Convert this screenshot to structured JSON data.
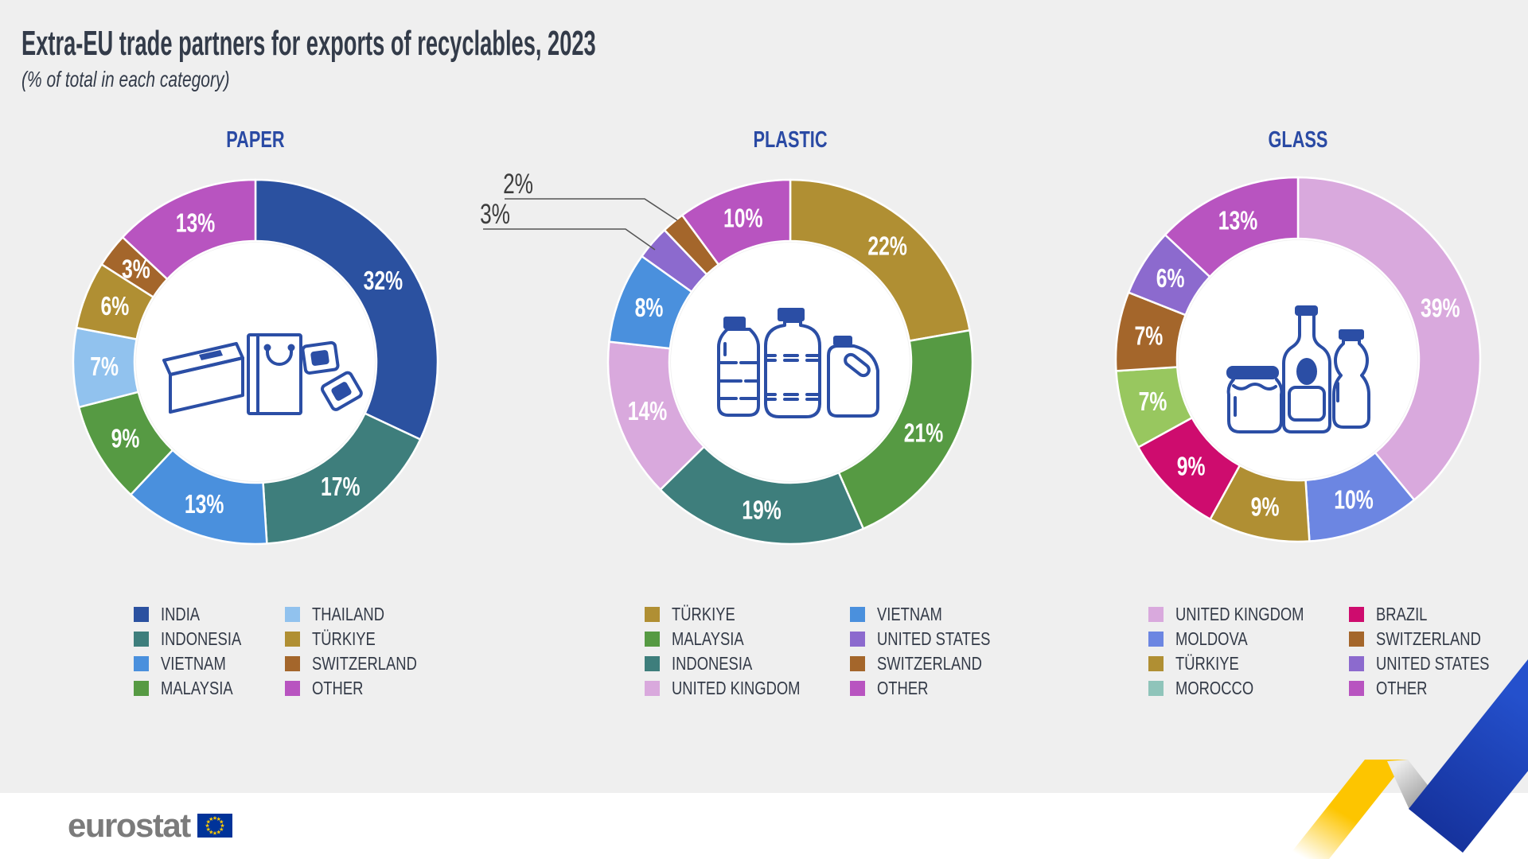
{
  "page": {
    "title": "Extra-EU trade partners for exports of recyclables, 2023",
    "subtitle": "(% of total in each category)"
  },
  "chart_data": [
    {
      "type": "donut",
      "title": "PAPER",
      "unit": "% of total",
      "center_icon": "paper-packaging-icon",
      "categories": [
        "INDIA",
        "INDONESIA",
        "VIETNAM",
        "MALAYSIA",
        "THAILAND",
        "TÜRKIYE",
        "SWITZERLAND",
        "OTHER"
      ],
      "values": [
        32,
        17,
        13,
        9,
        7,
        6,
        3,
        13
      ],
      "labels": [
        "32%",
        "17%",
        "13%",
        "9%",
        "7%",
        "6%",
        "3%",
        "13%"
      ],
      "colors": [
        "#2b51a0",
        "#3e7e7c",
        "#4a90dd",
        "#569a43",
        "#91c2ee",
        "#b08f33",
        "#a4662b",
        "#b854c0"
      ],
      "legend_col1": [
        "INDIA",
        "INDONESIA",
        "VIETNAM",
        "MALAYSIA"
      ],
      "legend_col2": [
        "THAILAND",
        "TÜRKIYE",
        "SWITZERLAND",
        "OTHER"
      ]
    },
    {
      "type": "donut",
      "title": "PLASTIC",
      "unit": "% of total",
      "center_icon": "plastic-bottles-icon",
      "categories": [
        "TÜRKIYE",
        "MALAYSIA",
        "INDONESIA",
        "UNITED KINGDOM",
        "VIETNAM",
        "UNITED STATES",
        "SWITZERLAND",
        "OTHER"
      ],
      "values": [
        22,
        21,
        19,
        14,
        8,
        3,
        2,
        10
      ],
      "labels": [
        "22%",
        "21%",
        "19%",
        "14%",
        "8%",
        "3%",
        "2%",
        "10%"
      ],
      "colors": [
        "#b08f33",
        "#569a43",
        "#3e7e7c",
        "#d9a9dd",
        "#4a90dd",
        "#8c6ace",
        "#a4662b",
        "#b854c0"
      ],
      "callouts": [
        {
          "category": "SWITZERLAND",
          "label": "2%"
        },
        {
          "category": "UNITED STATES",
          "label": "3%"
        }
      ],
      "legend_col1": [
        "TÜRKIYE",
        "MALAYSIA",
        "INDONESIA",
        "UNITED KINGDOM"
      ],
      "legend_col2": [
        "VIETNAM",
        "UNITED STATES",
        "SWITZERLAND",
        "OTHER"
      ]
    },
    {
      "type": "donut",
      "title": "GLASS",
      "unit": "% of total",
      "center_icon": "glass-bottles-icon",
      "categories": [
        "UNITED KINGDOM",
        "MOLDOVA",
        "TÜRKIYE",
        "BRAZIL",
        "MOROCCO",
        "SWITZERLAND",
        "UNITED STATES",
        "OTHER"
      ],
      "values": [
        39,
        10,
        9,
        9,
        7,
        7,
        6,
        13
      ],
      "labels": [
        "39%",
        "10%",
        "9%",
        "9%",
        "7%",
        "7%",
        "6%",
        "13%"
      ],
      "colors": [
        "#d9a9dd",
        "#6c86e2",
        "#b08f33",
        "#ce0c6e",
        "#98c75f",
        "#a4662b",
        "#8c6ace",
        "#b854c0"
      ],
      "legend_swatch_overrides": {
        "MOROCCO": "#8fc4ba"
      },
      "legend_col1": [
        "UNITED KINGDOM",
        "MOLDOVA",
        "TÜRKIYE",
        "MOROCCO"
      ],
      "legend_col2": [
        "BRAZIL",
        "SWITZERLAND",
        "UNITED STATES",
        "OTHER"
      ]
    }
  ],
  "footer": {
    "logo_text": "eurostat"
  },
  "colors": {
    "background": "#efefef",
    "footer_background": "#ffffff",
    "heading_text": "#333b49",
    "chart_title_blue": "#2a4aa4",
    "legend_text": "#333a47",
    "slice_label_text": "#ffffff",
    "icon_line_blue": "#2b4ea5",
    "eu_flag_blue": "#003399",
    "eu_star_yellow": "#ffcc00",
    "eurostat_gray": "#7b7b7b",
    "ribbon_yellow": "#fdc500",
    "ribbon_blue": "#1c43b2"
  }
}
